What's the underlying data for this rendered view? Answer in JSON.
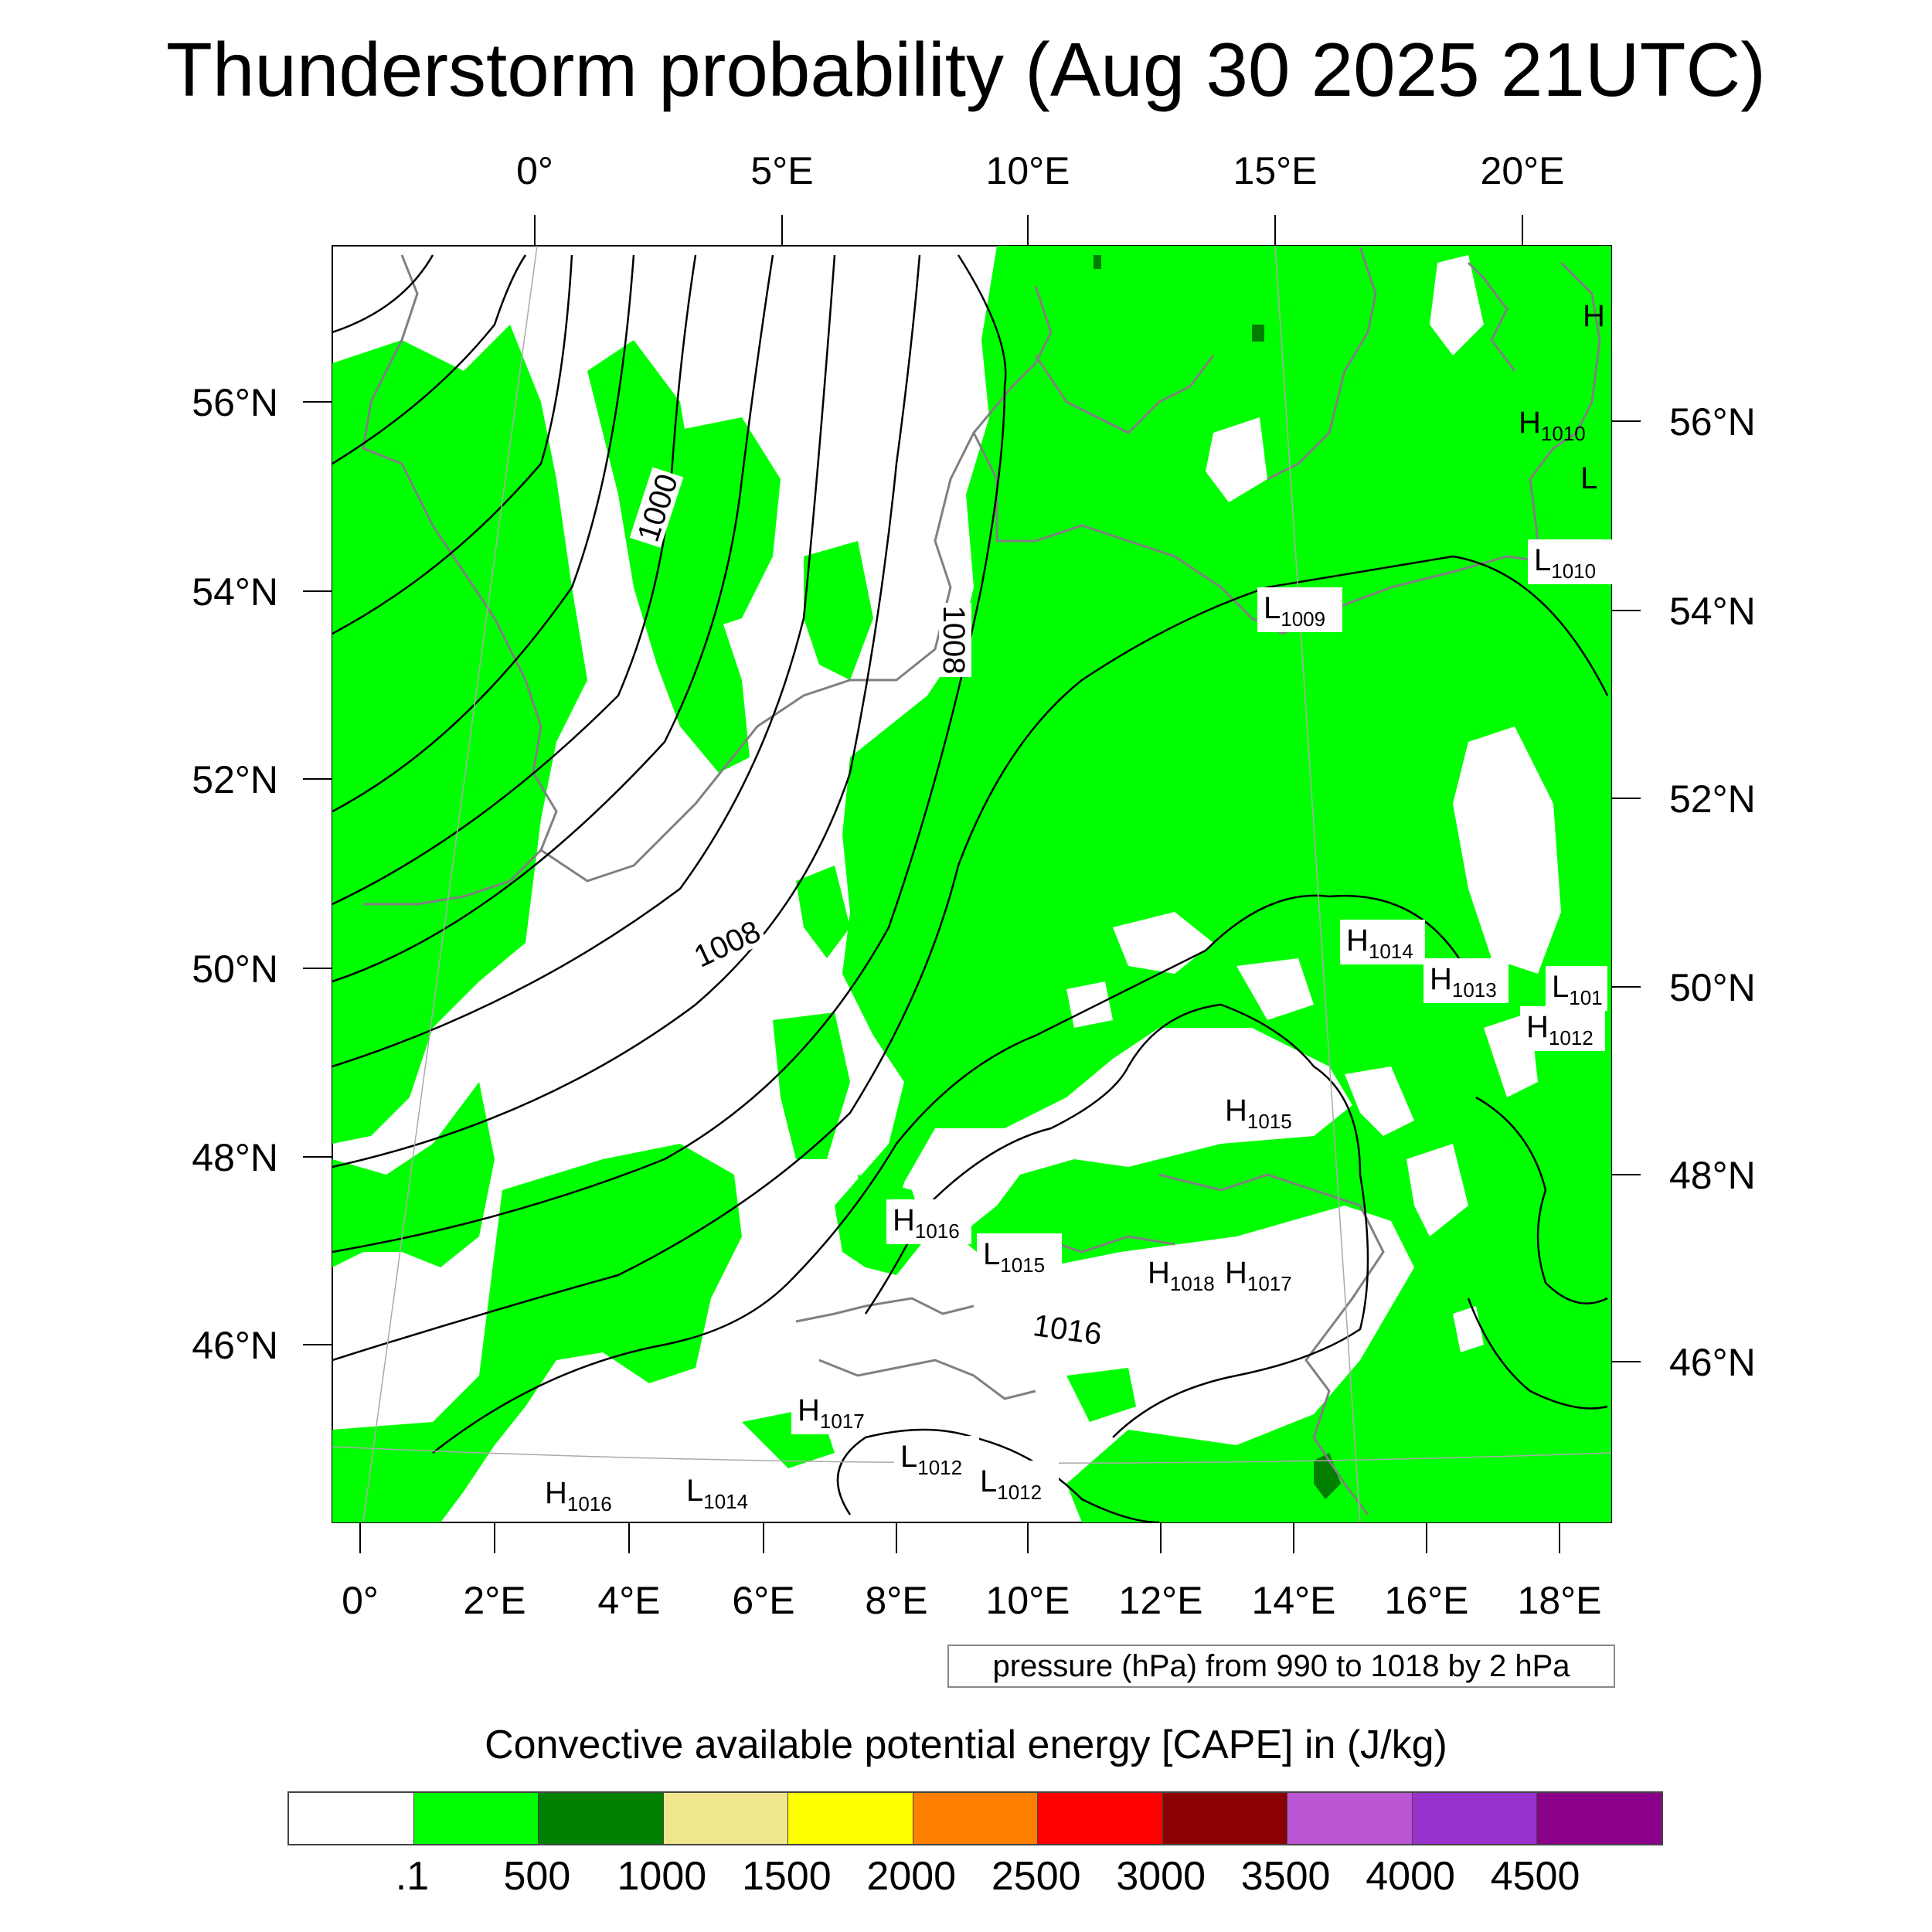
{
  "title": "Thunderstorm probability (Aug 30 2025 21UTC)",
  "top_lon_labels": [
    "0°",
    "5°E",
    "10°E",
    "15°E",
    "20°E"
  ],
  "bottom_lon_labels": [
    "0°",
    "2°E",
    "4°E",
    "6°E",
    "8°E",
    "10°E",
    "12°E",
    "14°E",
    "16°E",
    "18°E"
  ],
  "left_lat_labels": [
    "56°N",
    "54°N",
    "52°N",
    "50°N",
    "48°N",
    "46°N"
  ],
  "right_lat_labels": [
    "56°N",
    "54°N",
    "52°N",
    "50°N",
    "48°N",
    "46°N"
  ],
  "isobar_labels": [
    "1000",
    "1008",
    "1008",
    "1016"
  ],
  "pressure_centers": [
    {
      "letter": "H",
      "value": ""
    },
    {
      "letter": "H",
      "value": "1010"
    },
    {
      "letter": "L",
      "value": ""
    },
    {
      "letter": "L",
      "value": "1010"
    },
    {
      "letter": "L",
      "value": "1009"
    },
    {
      "letter": "H",
      "value": "1014"
    },
    {
      "letter": "H",
      "value": "1013"
    },
    {
      "letter": "L",
      "value": "101"
    },
    {
      "letter": "H",
      "value": "1012"
    },
    {
      "letter": "H",
      "value": "1015"
    },
    {
      "letter": "H",
      "value": "1016"
    },
    {
      "letter": "L",
      "value": "1015"
    },
    {
      "letter": "H",
      "value": "1018"
    },
    {
      "letter": "H",
      "value": "1017"
    },
    {
      "letter": "H",
      "value": "1017"
    },
    {
      "letter": "L",
      "value": "1012"
    },
    {
      "letter": "L",
      "value": "1012"
    },
    {
      "letter": "H",
      "value": "1016"
    },
    {
      "letter": "L",
      "value": "1014"
    }
  ],
  "info_box": "pressure (hPa) from 990 to 1018 by 2 hPa",
  "colorbar": {
    "title": "Convective available potential energy [CAPE] in (J/kg)",
    "colors": [
      "#ffffff",
      "#00ff00",
      "#007f00",
      "#f0e68c",
      "#ffff00",
      "#ff8000",
      "#ff0000",
      "#8b0000",
      "#ba55d3",
      "#9932cc",
      "#8b008b"
    ],
    "labels": [
      ".1",
      "500",
      "1000",
      "1500",
      "2000",
      "2500",
      "3000",
      "3500",
      "4000",
      "4500"
    ]
  },
  "colors": {
    "cape_low": "#00ff00",
    "cape_mid": "#007f00",
    "coast": "#808080",
    "isobar": "#000000"
  }
}
